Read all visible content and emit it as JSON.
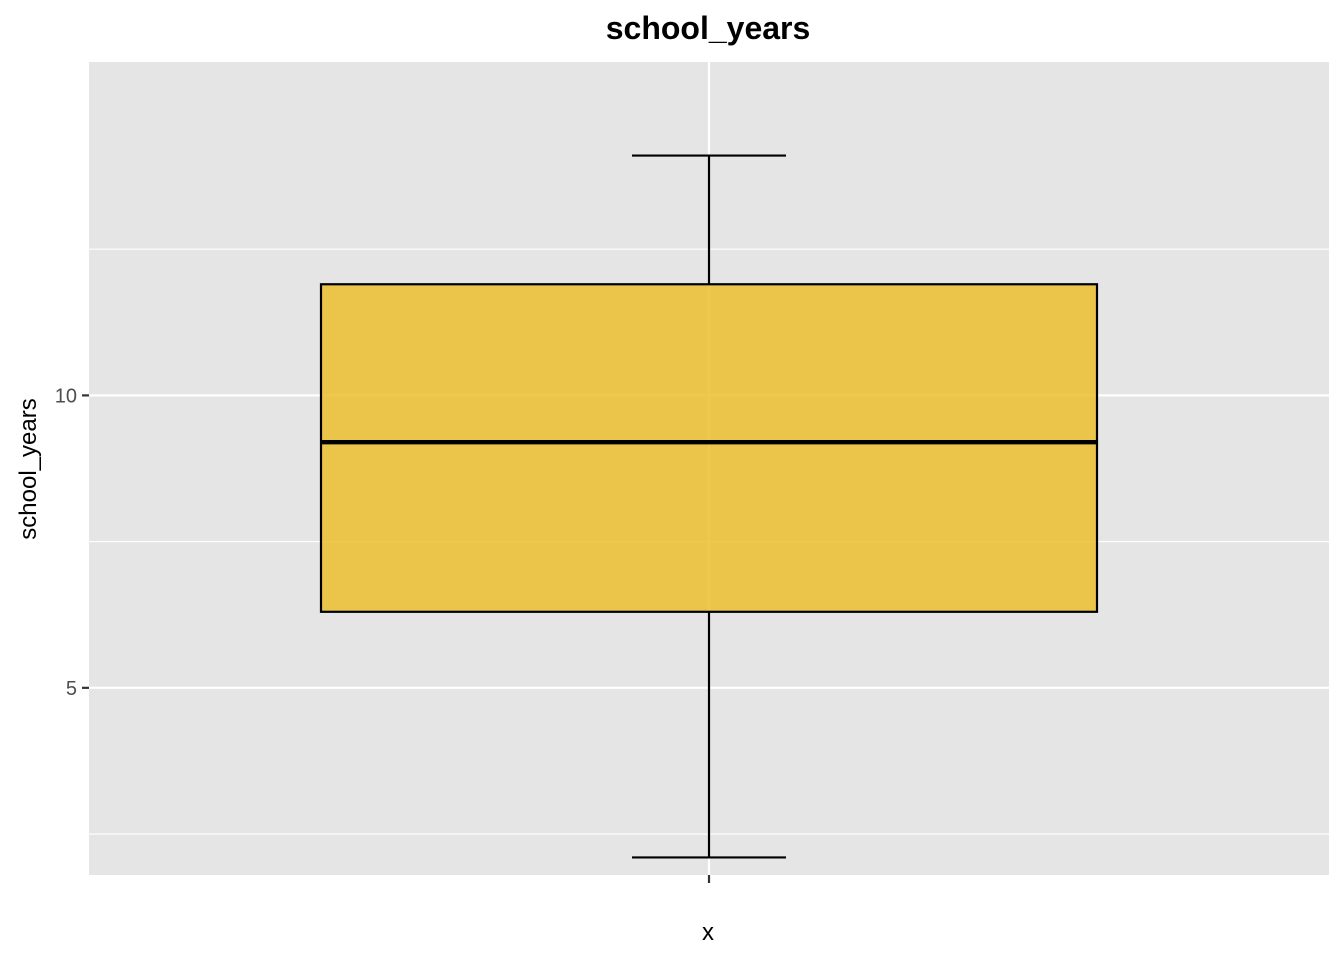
{
  "chart_data": {
    "type": "boxplot",
    "title": "school_years",
    "xlabel": "x",
    "ylabel": "school_years",
    "x_tick_labels": [
      ""
    ],
    "y_ticks": [
      5,
      10
    ],
    "y_tick_labels": [
      "5",
      "10"
    ],
    "ylim": [
      1.8,
      15.7
    ],
    "grid": true,
    "box": {
      "whisker_low": 2.1,
      "q1": 6.3,
      "median": 9.2,
      "q3": 11.9,
      "whisker_high": 14.1
    },
    "colors": {
      "box_fill": "#ecbf2f",
      "box_outline": "#000000",
      "panel_background": "#e5e5e5"
    }
  }
}
